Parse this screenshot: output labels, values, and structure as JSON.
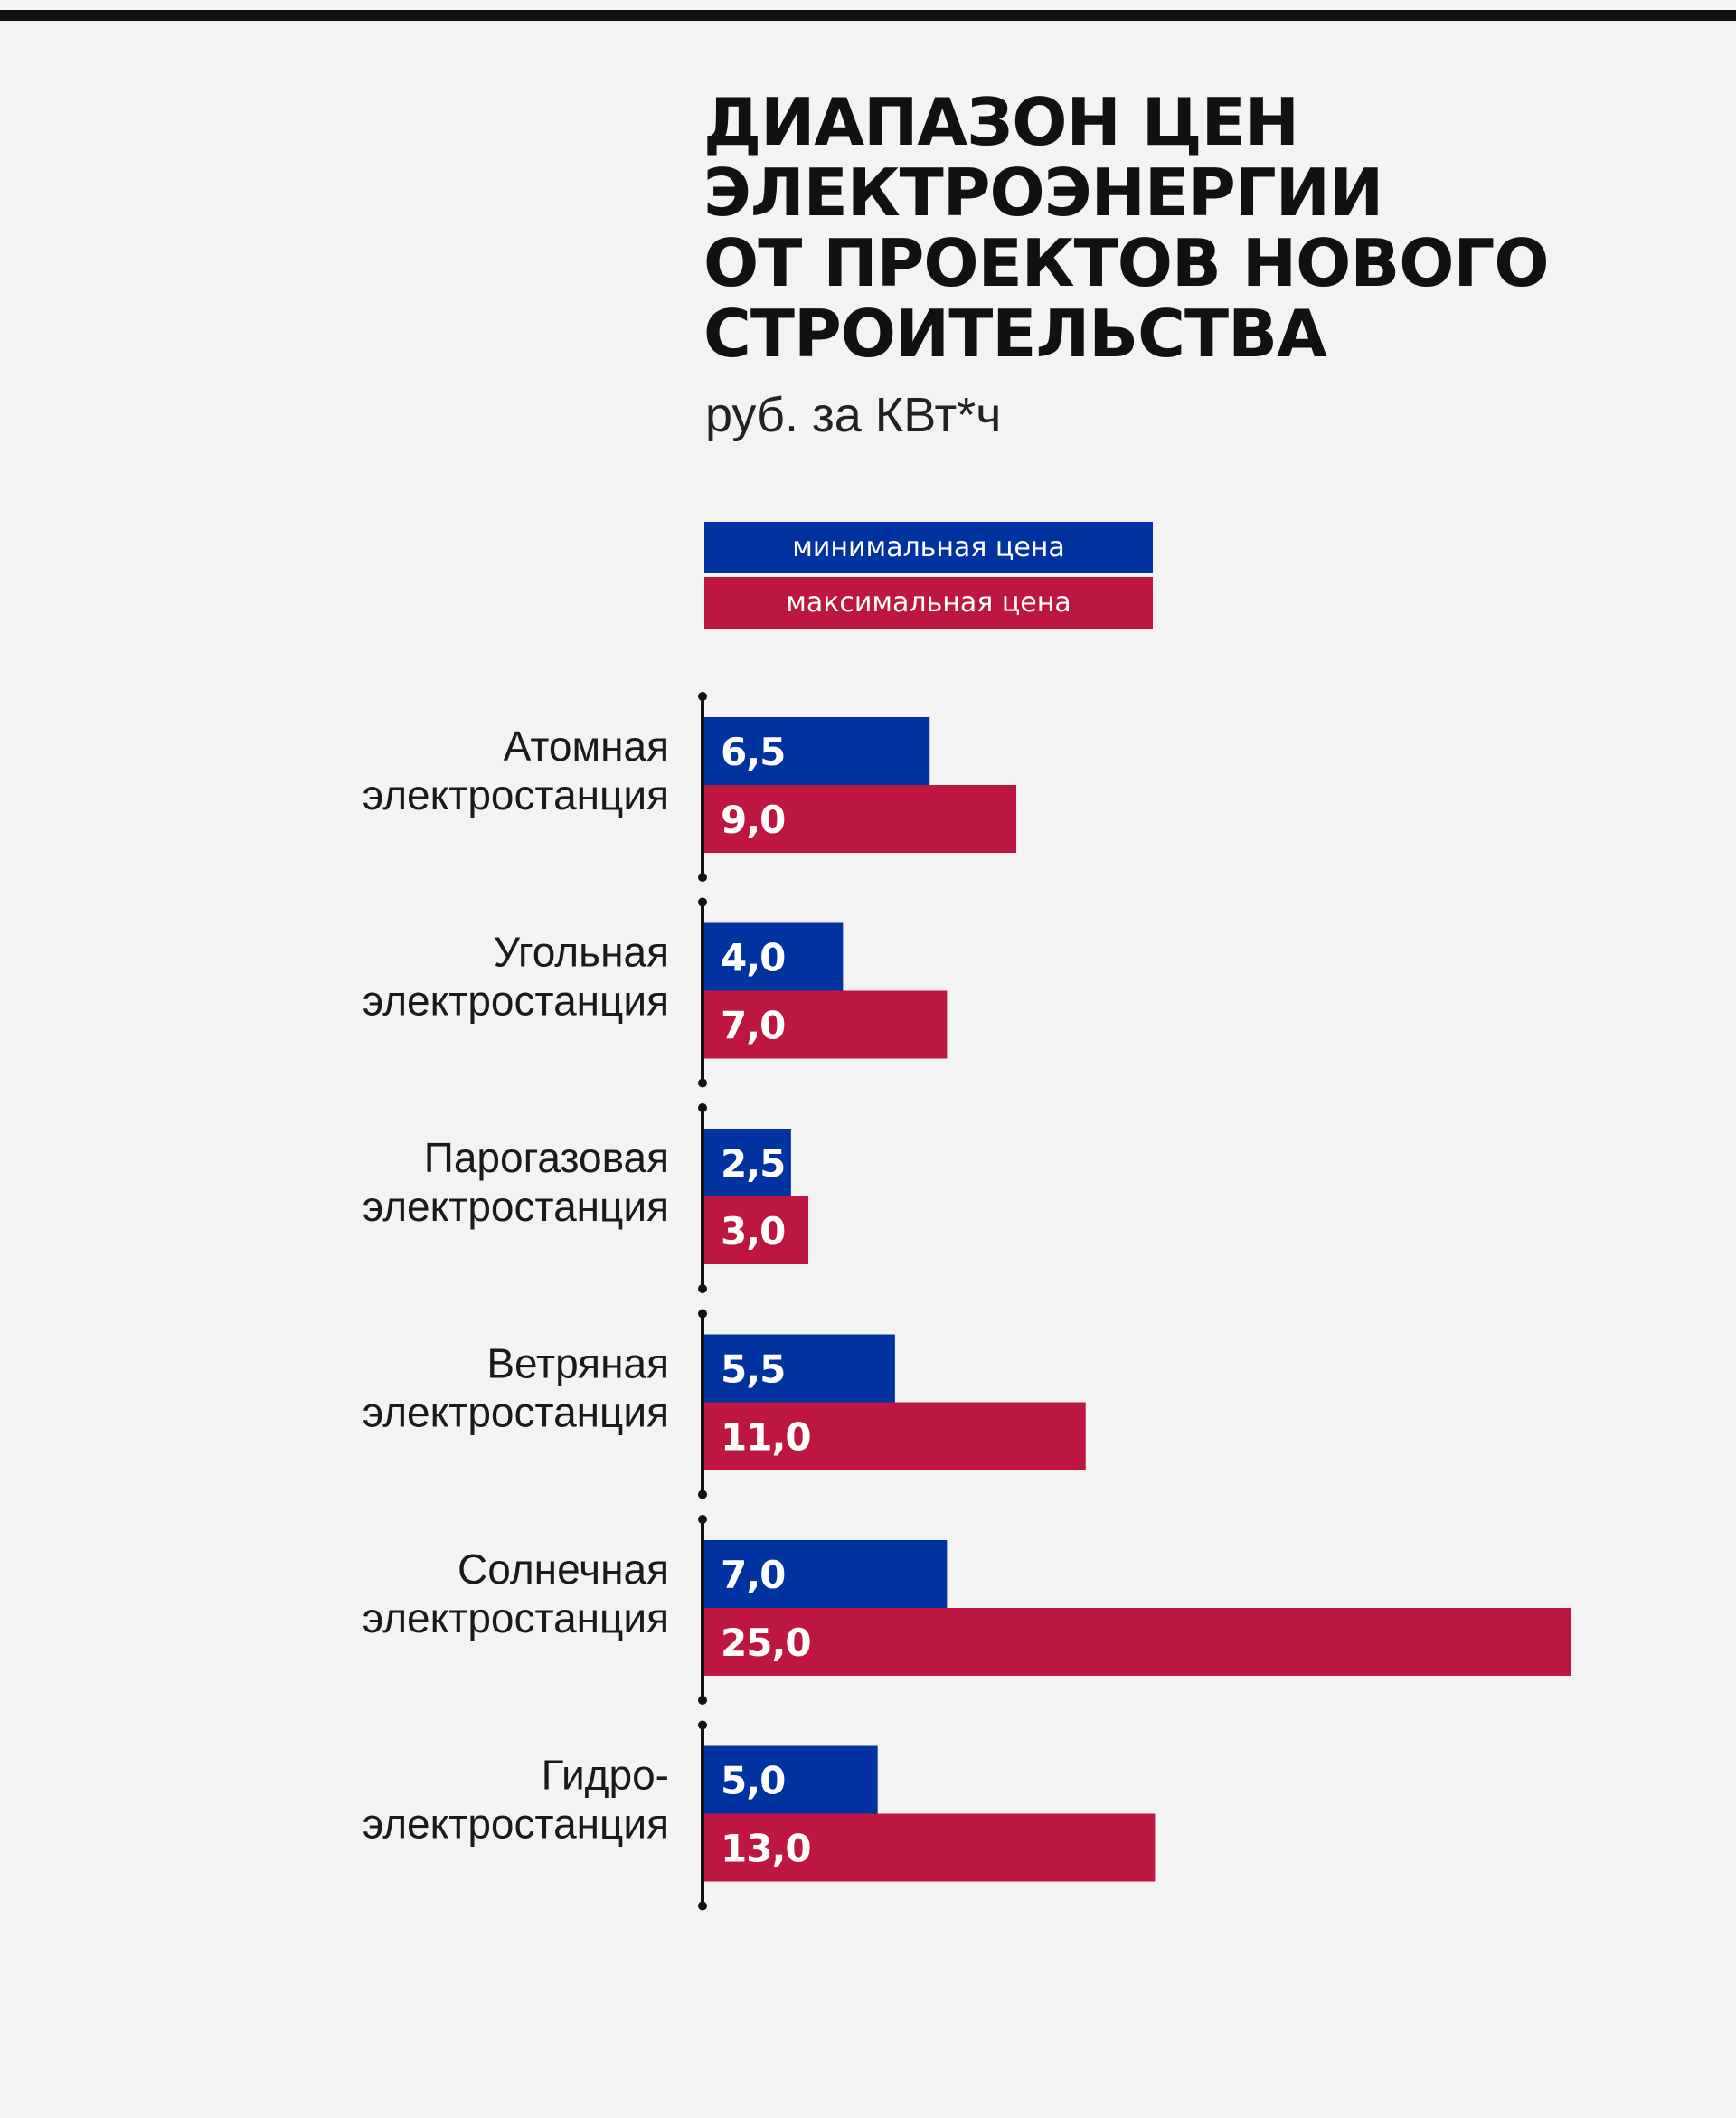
{
  "title_lines": [
    "ДИАПАЗОН ЦЕН",
    "ЭЛЕКТРОЭНЕРГИИ",
    "ОТ ПРОЕКТОВ НОВОГО",
    "СТРОИТЕЛЬСТВА"
  ],
  "subtitle": "руб. за КВт*ч",
  "legend": {
    "min_label": "минимальная цена",
    "max_label": "максимальная цена"
  },
  "colors": {
    "min": "#0033a0",
    "max": "#bd1640",
    "axis": "#111111",
    "background": "#f3f3f3"
  },
  "chart_data": {
    "type": "bar",
    "orientation": "horizontal",
    "title": "ДИАПАЗОН ЦЕН ЭЛЕКТРОЭНЕРГИИ ОТ ПРОЕКТОВ НОВОГО СТРОИТЕЛЬСТВА",
    "subtitle": "руб. за КВт*ч",
    "categories": [
      [
        "Атомная",
        "электростанция"
      ],
      [
        "Угольная",
        "электростанция"
      ],
      [
        "Парогазовая",
        "электростанция"
      ],
      [
        "Ветряная",
        "электростанция"
      ],
      [
        "Солнечная",
        "электростанция"
      ],
      [
        "Гидро-",
        "электростанция"
      ]
    ],
    "series": [
      {
        "name": "минимальная цена",
        "color": "#0033a0",
        "values": [
          6.5,
          4.0,
          2.5,
          5.5,
          7.0,
          5.0
        ],
        "labels": [
          "6,5",
          "4,0",
          "2,5",
          "5,5",
          "7,0",
          "5,0"
        ]
      },
      {
        "name": "максимальная цена",
        "color": "#bd1640",
        "values": [
          9.0,
          7.0,
          3.0,
          11.0,
          25.0,
          13.0
        ],
        "labels": [
          "9,0",
          "7,0",
          "3,0",
          "11,0",
          "25,0",
          "13,0"
        ]
      }
    ],
    "xlim": [
      0,
      25
    ],
    "grid": false,
    "legend_position": "top"
  }
}
